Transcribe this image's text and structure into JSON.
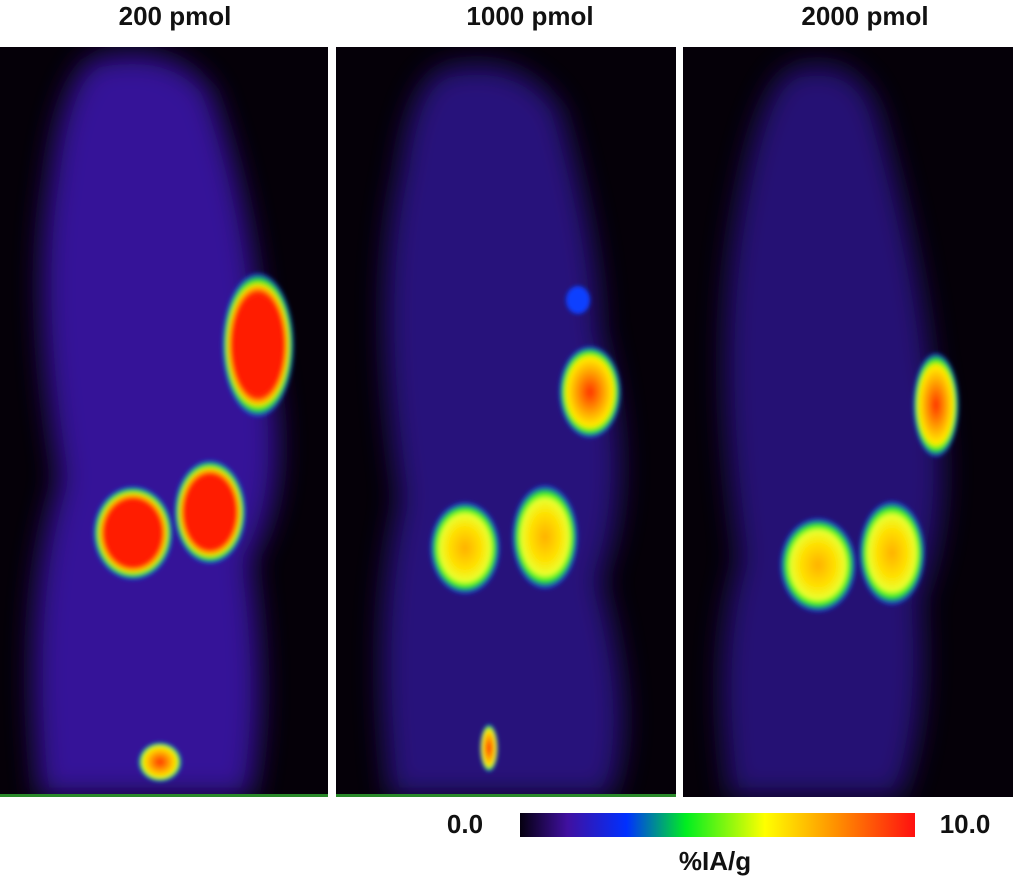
{
  "panels": [
    {
      "label": "200 pmol"
    },
    {
      "label": "1000 pmol"
    },
    {
      "label": "2000 pmol"
    }
  ],
  "colorbar": {
    "min_label": "0.0",
    "max_label": "10.0",
    "unit": "%IA/g"
  }
}
